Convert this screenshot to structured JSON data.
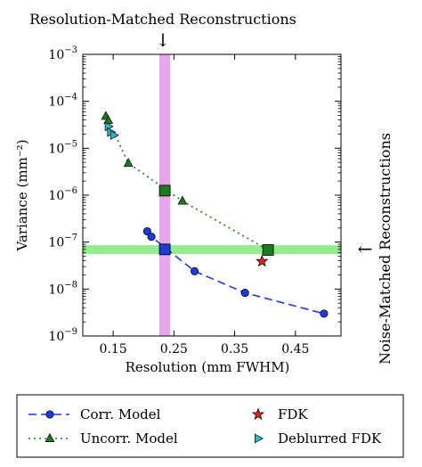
{
  "chart_data": {
    "type": "scatter",
    "xlabel": "Resolution (mm FWHM)",
    "ylabel": "Variance (mm⁻²)",
    "xlim": [
      0.1,
      0.525
    ],
    "ylim": [
      1e-09,
      0.001
    ],
    "yscale": "log",
    "xticks": [
      {
        "v": 0.15,
        "label": "0.15"
      },
      {
        "v": 0.25,
        "label": "0.25"
      },
      {
        "v": 0.35,
        "label": "0.35"
      },
      {
        "v": 0.45,
        "label": "0.45"
      }
    ],
    "yticks": [
      {
        "v": 1e-09,
        "base": "10",
        "exp": "−9"
      },
      {
        "v": 1e-08,
        "base": "10",
        "exp": "−8"
      },
      {
        "v": 1e-07,
        "base": "10",
        "exp": "−7"
      },
      {
        "v": 1e-06,
        "base": "10",
        "exp": "−6"
      },
      {
        "v": 1e-05,
        "base": "10",
        "exp": "−5"
      },
      {
        "v": 0.0001,
        "base": "10",
        "exp": "−4"
      },
      {
        "v": 0.001,
        "base": "10",
        "exp": "−3"
      }
    ],
    "series": [
      {
        "name": "Corr. Model",
        "marker": "circle",
        "line": "dashed",
        "color": "#1f3ad6",
        "x": [
          0.206,
          0.213,
          0.284,
          0.367,
          0.497
        ],
        "y": [
          1.7e-07,
          1.3e-07,
          2.4e-08,
          8.3e-09,
          3e-09
        ]
      },
      {
        "name": "Uncorr. Model",
        "marker": "triangle",
        "line": "dotted",
        "color": "#1e7a1e",
        "x": [
          0.138,
          0.142,
          0.175,
          0.264,
          0.405
        ],
        "y": [
          4.8e-05,
          3.9e-05,
          4.8e-06,
          7.5e-07,
          6.8e-08
        ]
      },
      {
        "name": "FDK",
        "marker": "star",
        "line": "none",
        "color": "#e02020",
        "x": [
          0.395
        ],
        "y": [
          3.9e-08
        ]
      },
      {
        "name": "Deblurred FDK",
        "marker": "triangle-right",
        "line": "none",
        "color": "#2fb5c8",
        "x": [
          0.142,
          0.146,
          0.151
        ],
        "y": [
          2.9e-05,
          2.2e-05,
          1.9e-05
        ]
      }
    ],
    "highlight_points": [
      {
        "x": 0.235,
        "y": 7e-08,
        "color": "#1f3ad6",
        "marker": "square"
      },
      {
        "x": 0.235,
        "y": 1.25e-06,
        "color": "#1e7a1e",
        "marker": "square"
      },
      {
        "x": 0.405,
        "y": 6.8e-08,
        "color": "#1e7a1e",
        "marker": "square"
      }
    ],
    "vband": {
      "x0": 0.226,
      "x1": 0.244,
      "color": "#e7a6ea"
    },
    "hband": {
      "y0": 5.6e-08,
      "y1": 8.6e-08,
      "color": "#93ec8e"
    },
    "annotations": {
      "top_label": "Resolution-Matched Reconstructions",
      "right_label": "Noise-Matched Reconstructions",
      "top_arrow": "↓",
      "right_arrow": "←"
    },
    "legend": {
      "placement": "below",
      "entries": [
        {
          "label": "Corr. Model",
          "series": 0
        },
        {
          "label": "FDK",
          "series": 2
        },
        {
          "label": "Uncorr. Model",
          "series": 1
        },
        {
          "label": "Deblurred FDK",
          "series": 3
        }
      ]
    },
    "grid": false
  }
}
